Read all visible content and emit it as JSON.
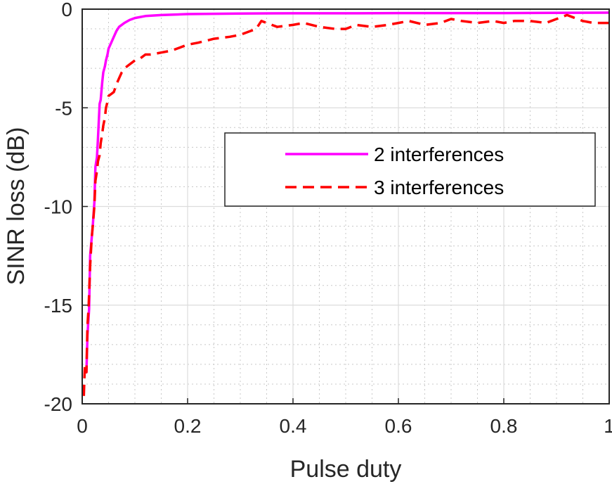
{
  "chart_data": {
    "type": "line",
    "xlabel": "Pulse duty",
    "ylabel": "SINR loss (dB)",
    "xlim": [
      0,
      1
    ],
    "ylim": [
      -20,
      0
    ],
    "xticks": [
      0,
      0.2,
      0.4,
      0.6,
      0.8,
      1
    ],
    "xtick_labels": [
      "0",
      "0.2",
      "0.4",
      "0.6",
      "0.8",
      "1"
    ],
    "yticks": [
      -20,
      -15,
      -10,
      -5,
      0
    ],
    "ytick_labels": [
      "-20",
      "-15",
      "-10",
      "-5",
      "0"
    ],
    "grid": true,
    "minor_grid": true,
    "legend_position": "center-right",
    "series": [
      {
        "name": "2 interferences",
        "color": "#ff00ff",
        "style": "solid",
        "x": [
          0.005,
          0.008,
          0.01,
          0.013,
          0.015,
          0.018,
          0.02,
          0.023,
          0.025,
          0.028,
          0.03,
          0.033,
          0.035,
          0.038,
          0.04,
          0.043,
          0.045,
          0.048,
          0.05,
          0.055,
          0.06,
          0.065,
          0.07,
          0.08,
          0.09,
          0.1,
          0.12,
          0.15,
          0.2,
          0.3,
          0.4,
          0.5,
          0.6,
          0.7,
          0.8,
          0.9,
          1.0
        ],
        "values": [
          -18.3,
          -18.4,
          -16.5,
          -15.2,
          -12.5,
          -11.6,
          -11.0,
          -9.8,
          -8.0,
          -7.5,
          -6.5,
          -4.8,
          -4.6,
          -3.7,
          -3.2,
          -2.9,
          -2.6,
          -2.3,
          -2.0,
          -1.7,
          -1.4,
          -1.1,
          -0.9,
          -0.7,
          -0.55,
          -0.45,
          -0.35,
          -0.3,
          -0.25,
          -0.22,
          -0.21,
          -0.21,
          -0.2,
          -0.2,
          -0.2,
          -0.19,
          -0.18
        ]
      },
      {
        "name": "3 interferences",
        "color": "#ff0000",
        "style": "dashed",
        "x": [
          0.003,
          0.005,
          0.008,
          0.01,
          0.012,
          0.015,
          0.018,
          0.02,
          0.023,
          0.025,
          0.028,
          0.03,
          0.033,
          0.035,
          0.038,
          0.04,
          0.043,
          0.045,
          0.048,
          0.05,
          0.055,
          0.06,
          0.065,
          0.07,
          0.075,
          0.08,
          0.09,
          0.1,
          0.11,
          0.12,
          0.13,
          0.15,
          0.17,
          0.2,
          0.22,
          0.25,
          0.28,
          0.3,
          0.32,
          0.33,
          0.34,
          0.35,
          0.37,
          0.4,
          0.42,
          0.45,
          0.48,
          0.5,
          0.52,
          0.55,
          0.58,
          0.6,
          0.62,
          0.65,
          0.68,
          0.7,
          0.72,
          0.75,
          0.78,
          0.8,
          0.82,
          0.85,
          0.88,
          0.9,
          0.92,
          0.93,
          0.95,
          0.97,
          1.0
        ],
        "values": [
          -19.6,
          -18.0,
          -18.4,
          -16.0,
          -15.2,
          -13.0,
          -11.6,
          -11.0,
          -10.0,
          -8.7,
          -8.2,
          -7.7,
          -7.4,
          -6.8,
          -6.3,
          -5.9,
          -5.5,
          -5.0,
          -4.7,
          -4.4,
          -4.3,
          -4.2,
          -3.8,
          -3.5,
          -3.2,
          -3.0,
          -2.8,
          -2.6,
          -2.5,
          -2.3,
          -2.3,
          -2.2,
          -2.1,
          -1.8,
          -1.7,
          -1.5,
          -1.4,
          -1.3,
          -1.1,
          -1.0,
          -0.6,
          -0.7,
          -0.9,
          -0.8,
          -0.7,
          -0.9,
          -1.0,
          -1.0,
          -0.8,
          -0.9,
          -0.8,
          -0.7,
          -0.6,
          -0.8,
          -0.7,
          -0.5,
          -0.6,
          -0.7,
          -0.6,
          -0.7,
          -0.6,
          -0.6,
          -0.7,
          -0.5,
          -0.3,
          -0.4,
          -0.6,
          -0.7,
          -0.7
        ]
      }
    ]
  }
}
